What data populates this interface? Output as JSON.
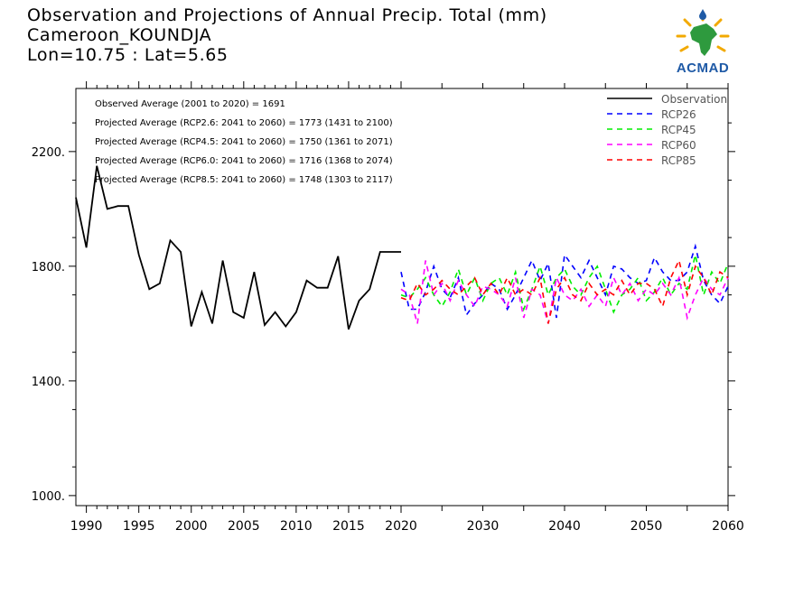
{
  "header": {
    "title_line1": "Observation and Projections of Annual Precip. Total (mm)",
    "title_line2": "Cameroon_KOUNDJA",
    "title_line3": "Lon=10.75 : Lat=5.65"
  },
  "logo": {
    "text": "ACMAD",
    "icon": "africa-sun-logo-icon"
  },
  "chart_data": {
    "type": "line",
    "xlim": [
      1989,
      2060
    ],
    "ylim": [
      965,
      2420
    ],
    "x_axis_break": 2020,
    "yticks": [
      1000,
      1400,
      1800,
      2200
    ],
    "ytick_labels": [
      "1000.",
      "1400.",
      "1800.",
      "2200."
    ],
    "xticks": [
      1990,
      1995,
      2000,
      2005,
      2010,
      2015,
      2020,
      2030,
      2040,
      2050,
      2060
    ],
    "xtick_labels": [
      "1990",
      "1995",
      "2000",
      "2005",
      "2010",
      "2015",
      "2020",
      "2030",
      "2040",
      "2050",
      "2060"
    ],
    "grid": false,
    "legend_position": "top-right",
    "annotations": [
      "Observed Average (2001 to 2020) = 1691",
      "Projected Average (RCP2.6: 2041 to 2060) = 1773 (1431 to 2100)",
      "Projected Average (RCP4.5: 2041 to 2060) = 1750 (1361 to 2071)",
      "Projected Average (RCP6.0: 2041 to 2060) = 1716 (1368 to 2074)",
      "Projected Average (RCP8.5: 2041 to 2060) = 1748 (1303 to 2117)"
    ],
    "series": [
      {
        "name": "Observation",
        "color": "#000000",
        "dash": false,
        "x": [
          1989,
          1990,
          1991,
          1992,
          1993,
          1994,
          1995,
          1996,
          1997,
          1998,
          1999,
          2000,
          2001,
          2002,
          2003,
          2004,
          2005,
          2006,
          2007,
          2008,
          2009,
          2010,
          2011,
          2012,
          2013,
          2014,
          2015,
          2016,
          2017,
          2018,
          2019,
          2020
        ],
        "y": [
          2040,
          1865,
          2150,
          2000,
          2010,
          2010,
          1840,
          1720,
          1740,
          1890,
          1850,
          1590,
          1710,
          1600,
          1820,
          1640,
          1620,
          1780,
          1595,
          1640,
          1590,
          1640,
          1750,
          1725,
          1725,
          1835,
          1580,
          1680,
          1720,
          1850,
          1850,
          1850
        ]
      },
      {
        "name": "RCP26",
        "color": "#0000ff",
        "dash": true,
        "x": [
          2020,
          2021,
          2022,
          2023,
          2024,
          2025,
          2026,
          2027,
          2028,
          2029,
          2030,
          2031,
          2032,
          2033,
          2034,
          2035,
          2036,
          2037,
          2038,
          2039,
          2040,
          2041,
          2042,
          2043,
          2044,
          2045,
          2046,
          2047,
          2048,
          2049,
          2050,
          2051,
          2052,
          2053,
          2054,
          2055,
          2056,
          2057,
          2058,
          2059,
          2060
        ],
        "y": [
          1780,
          1650,
          1650,
          1710,
          1800,
          1720,
          1690,
          1760,
          1630,
          1670,
          1700,
          1740,
          1720,
          1650,
          1700,
          1760,
          1820,
          1750,
          1810,
          1620,
          1840,
          1800,
          1760,
          1820,
          1760,
          1700,
          1800,
          1790,
          1760,
          1740,
          1750,
          1830,
          1780,
          1750,
          1750,
          1780,
          1870,
          1750,
          1700,
          1670,
          1730
        ]
      },
      {
        "name": "RCP45",
        "color": "#00ee00",
        "dash": true,
        "x": [
          2020,
          2021,
          2022,
          2023,
          2024,
          2025,
          2026,
          2027,
          2028,
          2029,
          2030,
          2031,
          2032,
          2033,
          2034,
          2035,
          2036,
          2037,
          2038,
          2039,
          2040,
          2041,
          2042,
          2043,
          2044,
          2045,
          2046,
          2047,
          2048,
          2049,
          2050,
          2051,
          2052,
          2053,
          2054,
          2055,
          2056,
          2057,
          2058,
          2059,
          2060
        ],
        "y": [
          1700,
          1690,
          1720,
          1760,
          1700,
          1660,
          1710,
          1790,
          1700,
          1760,
          1680,
          1740,
          1760,
          1700,
          1780,
          1650,
          1720,
          1800,
          1700,
          1760,
          1790,
          1730,
          1700,
          1760,
          1800,
          1720,
          1640,
          1700,
          1720,
          1760,
          1680,
          1710,
          1760,
          1700,
          1740,
          1720,
          1840,
          1700,
          1780,
          1740,
          1810
        ]
      },
      {
        "name": "RCP60",
        "color": "#ff00ff",
        "dash": true,
        "x": [
          2020,
          2021,
          2022,
          2023,
          2024,
          2025,
          2026,
          2027,
          2028,
          2029,
          2030,
          2031,
          2032,
          2033,
          2034,
          2035,
          2036,
          2037,
          2038,
          2039,
          2040,
          2041,
          2042,
          2043,
          2044,
          2045,
          2046,
          2047,
          2048,
          2049,
          2050,
          2051,
          2052,
          2053,
          2054,
          2055,
          2056,
          2057,
          2058,
          2059,
          2060
        ],
        "y": [
          1720,
          1700,
          1600,
          1820,
          1700,
          1740,
          1680,
          1750,
          1700,
          1660,
          1730,
          1720,
          1700,
          1660,
          1760,
          1620,
          1720,
          1700,
          1600,
          1760,
          1700,
          1680,
          1720,
          1660,
          1700,
          1660,
          1760,
          1700,
          1740,
          1680,
          1720,
          1700,
          1740,
          1700,
          1760,
          1620,
          1700,
          1760,
          1720,
          1700,
          1760
        ]
      },
      {
        "name": "RCP85",
        "color": "#ff0000",
        "dash": true,
        "x": [
          2020,
          2021,
          2022,
          2023,
          2024,
          2025,
          2026,
          2027,
          2028,
          2029,
          2030,
          2031,
          2032,
          2033,
          2034,
          2035,
          2036,
          2037,
          2038,
          2039,
          2040,
          2041,
          2042,
          2043,
          2044,
          2045,
          2046,
          2047,
          2048,
          2049,
          2050,
          2051,
          2052,
          2053,
          2054,
          2055,
          2056,
          2057,
          2058,
          2059,
          2060
        ],
        "y": [
          1690,
          1680,
          1740,
          1700,
          1720,
          1750,
          1720,
          1700,
          1730,
          1760,
          1700,
          1740,
          1700,
          1760,
          1700,
          1720,
          1700,
          1760,
          1600,
          1720,
          1760,
          1700,
          1680,
          1740,
          1700,
          1720,
          1700,
          1750,
          1700,
          1740,
          1740,
          1720,
          1660,
          1760,
          1820,
          1700,
          1800,
          1760,
          1700,
          1780,
          1760
        ]
      }
    ]
  }
}
